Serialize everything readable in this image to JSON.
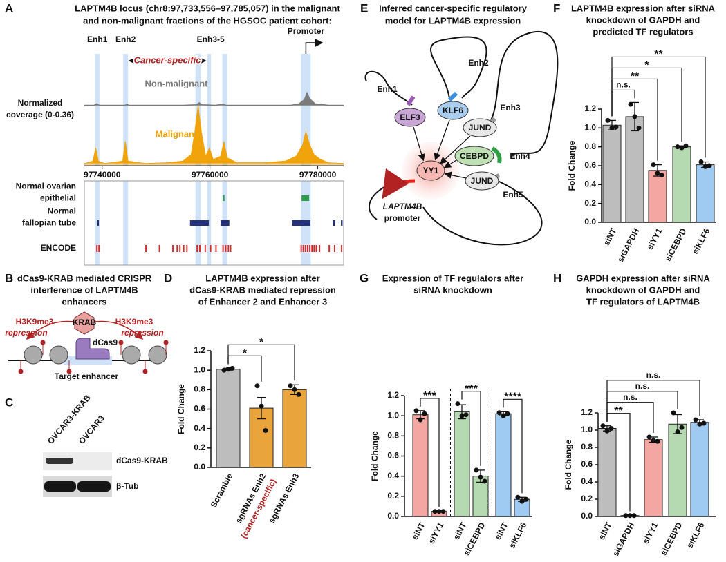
{
  "chart_data": [
    {
      "type": "coverage",
      "letter": "A",
      "title": [
        "LAPTM4B locus (chr8:97,733,556–97,785,057) in the malignant",
        "and non-malignant fractions of the HGSOC patient cohort:"
      ],
      "ylabel": [
        "Normalized",
        "coverage (0-0.36)"
      ],
      "xlim": [
        97736700,
        97784800
      ],
      "xticks": [
        97740000,
        97760000,
        97780000
      ],
      "ylim": [
        0,
        0.36
      ],
      "series": [
        {
          "name": "Non-malignant",
          "color": "#7a7a7a",
          "x": [
            97736700,
            97738500,
            97739000,
            97739500,
            97742000,
            97744200,
            97744600,
            97745000,
            97750000,
            97755000,
            97757500,
            97758000,
            97758500,
            97761000,
            97762500,
            97763000,
            97765000,
            97770000,
            97775000,
            97776500,
            97777500,
            97778000,
            97778500,
            97779500,
            97782000,
            97784800
          ],
          "values": [
            0.005,
            0.005,
            0.02,
            0.005,
            0.005,
            0.005,
            0.015,
            0.005,
            0.005,
            0.005,
            0.01,
            0.03,
            0.01,
            0.005,
            0.015,
            0.005,
            0.005,
            0.005,
            0.005,
            0.02,
            0.06,
            0.13,
            0.07,
            0.02,
            0.005,
            0.005
          ]
        },
        {
          "name": "Malignant",
          "color": "#f0a30a",
          "x": [
            97736700,
            97738300,
            97738800,
            97739300,
            97740500,
            97743800,
            97744300,
            97744800,
            97748000,
            97752000,
            97755000,
            97756500,
            97757200,
            97757800,
            97758400,
            97759200,
            97759900,
            97760600,
            97762000,
            97762600,
            97763200,
            97765000,
            97770000,
            97774000,
            97776000,
            97777200,
            97777800,
            97778500,
            97779300,
            97780500,
            97782000,
            97784800
          ],
          "values": [
            0.005,
            0.02,
            0.1,
            0.02,
            0.005,
            0.02,
            0.14,
            0.02,
            0.005,
            0.01,
            0.02,
            0.06,
            0.2,
            0.36,
            0.2,
            0.05,
            0.1,
            0.03,
            0.05,
            0.14,
            0.04,
            0.01,
            0.01,
            0.02,
            0.05,
            0.12,
            0.2,
            0.12,
            0.06,
            0.03,
            0.01,
            0.005
          ]
        }
      ],
      "regions": [
        [
          97738700,
          97739500
        ],
        [
          97743900,
          97744800
        ],
        [
          97757300,
          97758300
        ],
        [
          97759500,
          97760200
        ],
        [
          97762300,
          97763200
        ],
        [
          97776900,
          97778700
        ]
      ],
      "region_labels": [
        {
          "text": "Enh1",
          "regions": [
            0
          ]
        },
        {
          "text": "Enh2",
          "regions": [
            1
          ]
        },
        {
          "text": "Enh3-5",
          "regions": [
            2,
            3,
            4
          ]
        },
        {
          "text": "Promoter",
          "regions": [
            5
          ]
        }
      ],
      "annotation": "Cancer-specific",
      "tracks": [
        {
          "name": [
            "Normal ovarian",
            "epithelial"
          ],
          "color": "#2e9a4e",
          "segments": [
            [
              97762400,
              97762700
            ],
            [
              97777000,
              97778400
            ]
          ]
        },
        {
          "name": [
            "Normal",
            "fallopian tube"
          ],
          "color": "#23307a",
          "segments": [
            [
              97739100,
              97739400
            ],
            [
              97756300,
              97759800
            ],
            [
              97762000,
              97763600
            ],
            [
              97775200,
              97778600
            ],
            [
              97782800,
              97783200
            ],
            [
              97784300,
              97784600
            ]
          ]
        },
        {
          "name": [
            "ENCODE"
          ],
          "color": "#d42a2a",
          "segments": [
            [
              97738900,
              97739150
            ],
            [
              97739300,
              97739550
            ],
            [
              97748000,
              97748250
            ],
            [
              97750500,
              97750750
            ],
            [
              97753000,
              97753250
            ],
            [
              97753800,
              97754050
            ],
            [
              97754300,
              97754550
            ],
            [
              97755000,
              97755250
            ],
            [
              97755600,
              97755850
            ],
            [
              97757500,
              97757750
            ],
            [
              97758000,
              97758250
            ],
            [
              97759000,
              97759250
            ],
            [
              97760000,
              97760250
            ],
            [
              97761000,
              97761250
            ],
            [
              97762300,
              97762550
            ],
            [
              97762800,
              97763050
            ],
            [
              97763300,
              97763550
            ],
            [
              97763700,
              97763950
            ],
            [
              97776800,
              97777050
            ],
            [
              97777200,
              97777450
            ],
            [
              97777600,
              97777850
            ],
            [
              97778000,
              97778250
            ],
            [
              97778400,
              97778650
            ],
            [
              97778800,
              97779050
            ],
            [
              97779200,
              97779450
            ],
            [
              97779600,
              97779850
            ],
            [
              97780200,
              97780450
            ],
            [
              97782000,
              97782250
            ],
            [
              97783000,
              97783250
            ],
            [
              97784300,
              97784550
            ]
          ]
        }
      ]
    },
    {
      "type": "bar",
      "letter": "D",
      "title": [
        "LAPTM4B expression after",
        "dCas9-KRAB mediated repression",
        "of Enhancer 2 and Enhancer 3"
      ],
      "ylabel": "Fold Change",
      "categories": [
        "Scramble",
        "sgRNAs Enh2",
        "sgRNAs Enh3"
      ],
      "annotation": {
        "text": "(cancer-specific)",
        "category": 1
      },
      "values": [
        1.01,
        0.61,
        0.8
      ],
      "errors": [
        0.01,
        0.11,
        0.05
      ],
      "points": [
        [
          1.0,
          1.01,
          1.02
        ],
        [
          0.84,
          0.63,
          0.38
        ],
        [
          0.84,
          0.8,
          0.75
        ]
      ],
      "colors": [
        "#bdbdbd",
        "#e9a43c",
        "#e9a43c"
      ],
      "ylim": [
        0,
        1.2
      ],
      "yticks": [
        {
          "value": 0,
          "label": "0.0"
        },
        0.2,
        0.4,
        0.6,
        0.8,
        {
          "value": 1,
          "label": "1.0"
        },
        1.2
      ],
      "significance": [
        {
          "pair": [
            0,
            1
          ],
          "label": "*"
        },
        {
          "pair": [
            0,
            2
          ],
          "label": "*"
        }
      ]
    },
    {
      "type": "bar",
      "letter": "F",
      "title": [
        "LAPTM4B expression after siRNA",
        "knockdown of GAPDH and",
        "predicted TF regulators"
      ],
      "ylabel": "Fold Change",
      "categories": [
        "siNT",
        "siGAPDH",
        "siYY1",
        "siCEBPD",
        "siKLF6"
      ],
      "values": [
        1.03,
        1.12,
        0.55,
        0.8,
        0.61
      ],
      "errors": [
        0.05,
        0.15,
        0.06,
        0.01,
        0.03
      ],
      "points": [
        [
          1.08,
          1.0,
          1.01
        ],
        [
          1.25,
          1.12,
          1.0
        ],
        [
          0.61,
          0.52,
          0.5
        ],
        [
          0.8,
          0.79,
          0.81
        ],
        [
          0.64,
          0.59,
          0.6
        ]
      ],
      "colors": [
        "#bdbdbd",
        "#bdbdbd",
        "#f4a7a2",
        "#b5d9b0",
        "#9fcaf2"
      ],
      "ylim": [
        0,
        1.2
      ],
      "yticks": [
        {
          "value": 0,
          "label": "0.0"
        },
        0.2,
        0.4,
        0.6,
        0.8,
        {
          "value": 1,
          "label": "1.0"
        },
        1.2
      ],
      "significance": [
        {
          "pair": [
            0,
            1
          ],
          "label": "n.s."
        },
        {
          "pair": [
            0,
            2
          ],
          "label": "**"
        },
        {
          "pair": [
            0,
            3
          ],
          "label": "*"
        },
        {
          "pair": [
            0,
            4
          ],
          "label": "**"
        }
      ]
    },
    {
      "type": "bar",
      "letter": "G",
      "title": [
        "Expression of TF regulators after",
        "siRNA knockdown"
      ],
      "ylabel": "Fold Change",
      "categories": [
        "siNT",
        "siYY1",
        "siNT",
        "siCEBPD",
        "siNT",
        "siKLF6"
      ],
      "values": [
        1.01,
        0.05,
        1.04,
        0.4,
        1.02,
        0.17
      ],
      "errors": [
        0.04,
        0.005,
        0.07,
        0.06,
        0.02,
        0.02
      ],
      "points": [
        [
          1.05,
          0.96,
          1.02
        ],
        [
          0.05,
          0.05,
          0.05
        ],
        [
          1.12,
          1.0,
          1.01
        ],
        [
          0.46,
          0.39,
          0.35
        ],
        [
          1.03,
          1.0,
          1.02
        ],
        [
          0.19,
          0.15,
          0.17
        ]
      ],
      "colors": [
        "#f4a7a2",
        "#f4a7a2",
        "#b5d9b0",
        "#b5d9b0",
        "#9fcaf2",
        "#9fcaf2"
      ],
      "dividers": [
        1,
        3
      ],
      "ylim": [
        0,
        1.2
      ],
      "yticks": [
        {
          "value": 0,
          "label": "0.0"
        },
        0.2,
        0.4,
        0.6,
        0.8,
        {
          "value": 1,
          "label": "1.0"
        },
        1.2
      ],
      "significance": [
        {
          "pair": [
            0,
            1
          ],
          "label": "***"
        },
        {
          "pair": [
            2,
            3
          ],
          "label": "***"
        },
        {
          "pair": [
            4,
            5
          ],
          "label": "****"
        }
      ]
    },
    {
      "type": "bar",
      "letter": "H",
      "title": [
        "GAPDH expression after siRNA",
        "knockdown of GAPDH and",
        "TF regulators of LAPTM4B"
      ],
      "ylabel": "Fold Change",
      "categories": [
        "siNT",
        "siGAPDH",
        "siYY1",
        "siCEBPD",
        "siKLF6"
      ],
      "values": [
        1.02,
        0.01,
        0.89,
        1.07,
        1.09
      ],
      "errors": [
        0.03,
        0.002,
        0.03,
        0.11,
        0.03
      ],
      "points": [
        [
          1.05,
          0.99,
          1.02
        ],
        [
          0.01,
          0.01,
          0.01
        ],
        [
          0.92,
          0.88,
          0.87
        ],
        [
          1.2,
          0.98,
          1.03
        ],
        [
          1.12,
          1.07,
          1.08
        ]
      ],
      "colors": [
        "#bdbdbd",
        "#bdbdbd",
        "#f4a7a2",
        "#b5d9b0",
        "#9fcaf2"
      ],
      "ylim": [
        0,
        1.2
      ],
      "yticks": [
        {
          "value": 0,
          "label": "0.0"
        },
        0.2,
        0.4,
        0.6,
        0.8,
        {
          "value": 1,
          "label": "1.0"
        },
        1.2
      ],
      "significance": [
        {
          "pair": [
            0,
            1
          ],
          "label": "**"
        },
        {
          "pair": [
            0,
            2
          ],
          "label": "n.s."
        },
        {
          "pair": [
            0,
            3
          ],
          "label": "n.s."
        },
        {
          "pair": [
            0,
            4
          ],
          "label": "n.s."
        }
      ]
    }
  ],
  "panels": {
    "B": {
      "letter": "B",
      "title": [
        "dCas9-KRAB mediated CRISPR",
        "interference of LAPTM4B",
        "enhancers"
      ],
      "effector": "KRAB",
      "mark_left": "H3K9me3",
      "mark_right": "H3K9me3",
      "effect_left": "repression",
      "effect_right": "repression",
      "protein": "dCas9",
      "target": "Target enhancer"
    },
    "C": {
      "letter": "C",
      "lanes": [
        "OVCAR3-KRAB",
        "OVCAR3"
      ],
      "bands": [
        "dCas9-KRAB",
        "β-Tub"
      ]
    },
    "E": {
      "letter": "E",
      "title": [
        "Inferred cancer-specific regulatory",
        "model for LAPTM4B expression"
      ],
      "factors": [
        "ELF3",
        "KLF6",
        "JUND",
        "CEBPD",
        "JUND",
        "YY1"
      ],
      "enhancers": [
        "Enh1",
        "Enh2",
        "Enh3",
        "Enh4",
        "Enh5"
      ],
      "promoter": [
        "LAPTM4B",
        "promoter"
      ]
    }
  }
}
